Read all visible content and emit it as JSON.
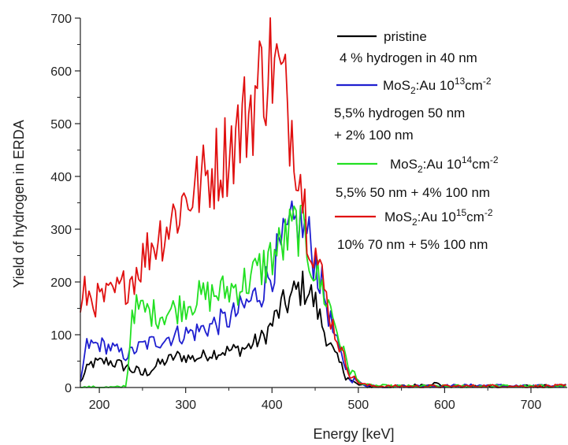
{
  "chart_data": {
    "type": "line",
    "xlabel": "Energy [keV]",
    "ylabel": "Yield of hydrogen in ERDA",
    "xlim": [
      178,
      742
    ],
    "ylim": [
      0,
      700
    ],
    "x_ticks": [
      200,
      300,
      400,
      500,
      600,
      700
    ],
    "y_ticks": [
      0,
      100,
      200,
      300,
      400,
      500,
      600,
      700
    ],
    "grid": false,
    "legend_position": "top-right",
    "series": [
      {
        "name": "pristine",
        "color": "#000000",
        "points": [
          [
            178,
            10
          ],
          [
            190,
            45
          ],
          [
            210,
            50
          ],
          [
            230,
            40
          ],
          [
            250,
            25
          ],
          [
            270,
            45
          ],
          [
            290,
            60
          ],
          [
            310,
            55
          ],
          [
            330,
            65
          ],
          [
            350,
            70
          ],
          [
            370,
            75
          ],
          [
            390,
            95
          ],
          [
            400,
            120
          ],
          [
            410,
            150
          ],
          [
            420,
            165
          ],
          [
            430,
            185
          ],
          [
            440,
            190
          ],
          [
            450,
            160
          ],
          [
            460,
            110
          ],
          [
            470,
            70
          ],
          [
            480,
            40
          ],
          [
            490,
            15
          ],
          [
            500,
            5
          ],
          [
            510,
            2
          ],
          [
            530,
            1
          ],
          [
            560,
            3
          ],
          [
            590,
            8
          ],
          [
            600,
            2
          ],
          [
            650,
            2
          ],
          [
            700,
            2
          ],
          [
            742,
            3
          ]
        ]
      },
      {
        "name": "MoS2:Au 10^13 cm^-2",
        "color": "#1f1fd0",
        "points": [
          [
            178,
            10
          ],
          [
            185,
            80
          ],
          [
            200,
            82
          ],
          [
            215,
            75
          ],
          [
            230,
            60
          ],
          [
            250,
            80
          ],
          [
            270,
            90
          ],
          [
            290,
            100
          ],
          [
            310,
            105
          ],
          [
            330,
            118
          ],
          [
            350,
            130
          ],
          [
            370,
            155
          ],
          [
            390,
            190
          ],
          [
            400,
            225
          ],
          [
            410,
            260
          ],
          [
            420,
            290
          ],
          [
            430,
            310
          ],
          [
            440,
            295
          ],
          [
            450,
            240
          ],
          [
            460,
            180
          ],
          [
            470,
            110
          ],
          [
            480,
            60
          ],
          [
            490,
            25
          ],
          [
            500,
            10
          ],
          [
            510,
            4
          ],
          [
            530,
            2
          ],
          [
            600,
            3
          ],
          [
            650,
            4
          ],
          [
            700,
            2
          ],
          [
            742,
            4
          ]
        ]
      },
      {
        "name": "MoS2:Au 10^14 cm^-2",
        "color": "#22e022",
        "points": [
          [
            178,
            0
          ],
          [
            225,
            0
          ],
          [
            232,
            5
          ],
          [
            238,
            150
          ],
          [
            255,
            145
          ],
          [
            270,
            138
          ],
          [
            290,
            150
          ],
          [
            310,
            168
          ],
          [
            330,
            175
          ],
          [
            350,
            185
          ],
          [
            370,
            200
          ],
          [
            390,
            230
          ],
          [
            400,
            250
          ],
          [
            410,
            265
          ],
          [
            420,
            290
          ],
          [
            430,
            310
          ],
          [
            440,
            270
          ],
          [
            450,
            220
          ],
          [
            460,
            180
          ],
          [
            470,
            140
          ],
          [
            480,
            80
          ],
          [
            490,
            35
          ],
          [
            500,
            12
          ],
          [
            510,
            4
          ],
          [
            540,
            2
          ],
          [
            600,
            2
          ],
          [
            650,
            3
          ],
          [
            700,
            2
          ],
          [
            742,
            3
          ]
        ]
      },
      {
        "name": "MoS2:Au 10^15 cm^-2",
        "color": "#e01010",
        "points": [
          [
            178,
            130
          ],
          [
            182,
            180
          ],
          [
            195,
            165
          ],
          [
            210,
            170
          ],
          [
            225,
            185
          ],
          [
            240,
            215
          ],
          [
            260,
            270
          ],
          [
            280,
            310
          ],
          [
            300,
            360
          ],
          [
            320,
            390
          ],
          [
            340,
            430
          ],
          [
            360,
            480
          ],
          [
            380,
            550
          ],
          [
            390,
            600
          ],
          [
            400,
            620
          ],
          [
            410,
            580
          ],
          [
            420,
            520
          ],
          [
            430,
            450
          ],
          [
            435,
            380
          ],
          [
            440,
            320
          ],
          [
            450,
            260
          ],
          [
            460,
            190
          ],
          [
            470,
            120
          ],
          [
            480,
            70
          ],
          [
            490,
            30
          ],
          [
            500,
            10
          ],
          [
            510,
            4
          ],
          [
            530,
            2
          ],
          [
            600,
            2
          ],
          [
            650,
            3
          ],
          [
            700,
            2
          ],
          [
            742,
            3
          ]
        ]
      }
    ],
    "legend": [
      {
        "series": 0,
        "label": "pristine",
        "note": "4 % hydrogen in 40 nm"
      },
      {
        "series": 1,
        "label_main": "MoS",
        "label_sub": "2",
        "label_mid": ":Au 10",
        "label_sup": "13",
        "label_unit": "cm",
        "label_unit_sup": "-2",
        "note": "5,5% hydrogen 50 nm",
        "note2": "+ 2% 100 nm"
      },
      {
        "series": 2,
        "label_main": "MoS",
        "label_sub": "2",
        "label_mid": ":Au  10",
        "label_sup": "14",
        "label_unit": "cm",
        "label_unit_sup": "-2",
        "note": "5,5% 50 nm + 4% 100 nm"
      },
      {
        "series": 3,
        "label_main": "MoS",
        "label_sub": "2",
        "label_mid": ":Au  10",
        "label_sup": "15",
        "label_unit": "cm",
        "label_unit_sup": "-2",
        "note": "10% 70 nm + 5% 100 nm"
      }
    ]
  }
}
